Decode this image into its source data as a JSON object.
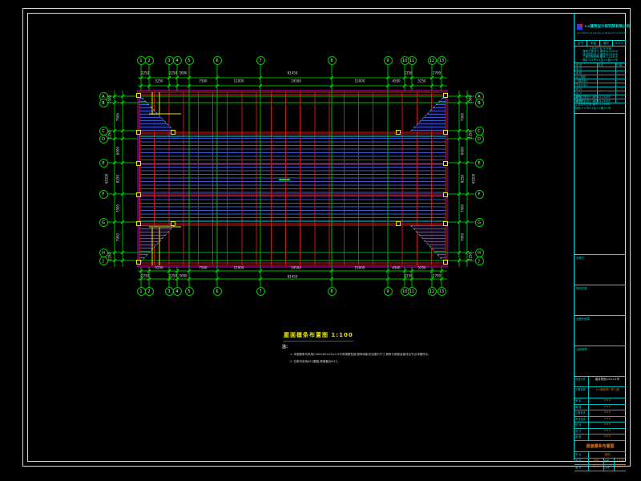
{
  "sheet": {
    "background": "#000000",
    "border_color": "#d8d8d8"
  },
  "colors": {
    "axis_green": "#00b400",
    "axis_green_bright": "#00e000",
    "grid_red": "#cd1919",
    "purlin_blue": "#3c5ac8",
    "magenta": "#c800c8",
    "cyan": "#00dcdc",
    "yellow": "#e8e800",
    "dim_text": "#e0e0e0",
    "value_orange": "#d87818"
  },
  "plan": {
    "top_axis_labels": [
      "1",
      "2",
      "3",
      "4",
      "5",
      "6",
      "7",
      "8",
      "9",
      "10",
      "11",
      "12",
      "13"
    ],
    "side_axis_labels": [
      "A",
      "B",
      "C",
      "D",
      "E",
      "F",
      "G",
      "H",
      "J"
    ],
    "dims": {
      "top": [
        "2250",
        "5250",
        "2250",
        "3000",
        "7500",
        "12000",
        "19500",
        "15000",
        "4500",
        "2250",
        "5250",
        "2700"
      ],
      "bottom": [
        "2250",
        "5250",
        "2250",
        "3000",
        "7500",
        "12000",
        "19500",
        "15000",
        "4500",
        "2250",
        "5250",
        "2700"
      ],
      "left": [
        "1500",
        "7500",
        "2250",
        "6000",
        "8250",
        "7500",
        "7950",
        "2250"
      ],
      "right": [
        "1500",
        "7500",
        "2250",
        "6000",
        "8250",
        "7500",
        "7950",
        "2250"
      ],
      "overall_width": "81450",
      "overall_height": "43200"
    }
  },
  "annotation": {
    "title": "屋面檩条布置图 1:100",
    "note_header": "注:",
    "notes": [
      "1. 本图檩条均采用C160×60×20×2.5冷弯薄壁型钢,檩条间距详见图中尺寸,檩条与刚架连接详见节点详图所示。",
      "2. 拉条均采用Φ12圆钢,两端套丝M12。"
    ]
  },
  "title_block": {
    "company": "××建筑设计研究院有限公司",
    "company_en": "Architectural Design & Research Institute",
    "header_cells": [
      "证书",
      "甲级",
      "编号",
      "0123"
    ],
    "cert_lines": [
      "工程设计证书 甲级",
      "建筑工程设计 编号A123456",
      "城市规划设计 编号B123456",
      "工程咨询资格 编号C123456",
      "地址:××市××区××路××号"
    ],
    "sig_header": [
      "职 责",
      "签 名",
      "日 期"
    ],
    "sig_rows": [
      "审 定",
      "审 核",
      "总工程师",
      "工程负责人",
      "专业负责人",
      "校 对",
      "设 计",
      "制 图",
      "描 图"
    ],
    "mid_boxes": [
      "会签栏",
      "修改记录",
      "出图专用章",
      "注册师章"
    ],
    "project_rows": [
      {
        "label": "批准文号",
        "value": "建设规划(2011)1号"
      },
      {
        "label": "工程名称",
        "value": "××钢结构厂房工程"
      },
      {
        "label": "审 定",
        "value": "×××"
      },
      {
        "label": "审 核",
        "value": "×××"
      },
      {
        "label": "工程负责",
        "value": "×××"
      },
      {
        "label": "专业负责",
        "value": "×××"
      },
      {
        "label": "校 对",
        "value": "×××"
      },
      {
        "label": "设 计",
        "value": "×××"
      },
      {
        "label": "制 图",
        "value": "×××"
      }
    ],
    "figure_name": "屋面檩条布置图",
    "meta_rows": [
      {
        "label": "专 业",
        "value": "结构",
        "label2": "",
        "value2": ""
      },
      {
        "label": "图 别",
        "value": "结施",
        "label2": "比例",
        "value2": "1:100"
      },
      {
        "label": "图 号",
        "value": "GJ-15",
        "label2": "日期",
        "value2": "2011.06"
      }
    ]
  }
}
